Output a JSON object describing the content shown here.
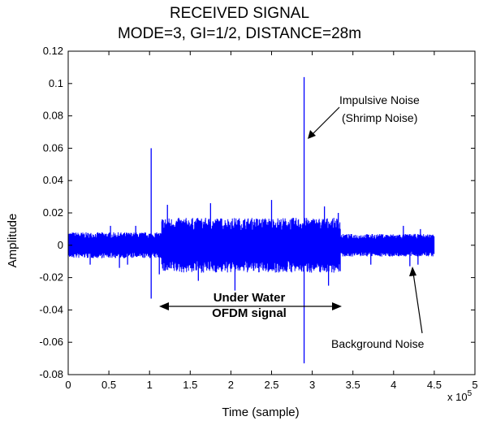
{
  "chart_data": {
    "type": "line",
    "title": "RECEIVED SIGNAL",
    "subtitle": "MODE=3, GI=1/2, DISTANCE=28m",
    "xlabel": "Time (sample)",
    "ylabel": "Amplitude",
    "x_multiplier": "x 10",
    "x_multiplier_exp": "5",
    "xlim": [
      0,
      5
    ],
    "ylim": [
      -0.08,
      0.12
    ],
    "x_ticks": [
      "0",
      "0.5",
      "1",
      "1.5",
      "2",
      "2.5",
      "3",
      "3.5",
      "4",
      "4.5",
      "5"
    ],
    "y_ticks": [
      "0.12",
      "0.1",
      "0.08",
      "0.06",
      "0.04",
      "0.02",
      "0",
      "-0.02",
      "-0.04",
      "-0.06",
      "-0.08"
    ],
    "grid": false,
    "color": "#0000ff",
    "segments": [
      {
        "x_start": 0.0,
        "x_end": 1.15,
        "amplitude": 0.008
      },
      {
        "x_start": 1.15,
        "x_end": 3.35,
        "amplitude": 0.017
      },
      {
        "x_start": 3.35,
        "x_end": 4.5,
        "amplitude": 0.007
      }
    ],
    "spikes": [
      {
        "x": 0.27,
        "y": -0.012
      },
      {
        "x": 0.63,
        "y": -0.014
      },
      {
        "x": 0.73,
        "y": -0.012
      },
      {
        "x": 0.52,
        "y": 0.012
      },
      {
        "x": 0.83,
        "y": 0.012
      },
      {
        "x": 1.02,
        "y": 0.06
      },
      {
        "x": 1.02,
        "y": -0.033
      },
      {
        "x": 1.12,
        "y": -0.018
      },
      {
        "x": 1.22,
        "y": 0.025
      },
      {
        "x": 1.6,
        "y": -0.022
      },
      {
        "x": 1.75,
        "y": 0.026
      },
      {
        "x": 2.05,
        "y": -0.028
      },
      {
        "x": 2.5,
        "y": 0.028
      },
      {
        "x": 2.9,
        "y": 0.104
      },
      {
        "x": 2.9,
        "y": -0.073
      },
      {
        "x": 3.15,
        "y": 0.024
      },
      {
        "x": 3.2,
        "y": -0.025
      },
      {
        "x": 3.32,
        "y": 0.02
      },
      {
        "x": 3.72,
        "y": -0.012
      },
      {
        "x": 4.12,
        "y": 0.012
      },
      {
        "x": 4.2,
        "y": -0.013
      },
      {
        "x": 4.3,
        "y": -0.012
      },
      {
        "x": 4.33,
        "y": 0.01
      },
      {
        "x": 4.48,
        "y": 0.006
      }
    ],
    "annotations": {
      "impulsive_1": "Impulsive Noise",
      "impulsive_2": "(Shrimp Noise)",
      "ofdm_1": "Under Water",
      "ofdm_2": "OFDM signal",
      "background": "Background Noise"
    }
  }
}
